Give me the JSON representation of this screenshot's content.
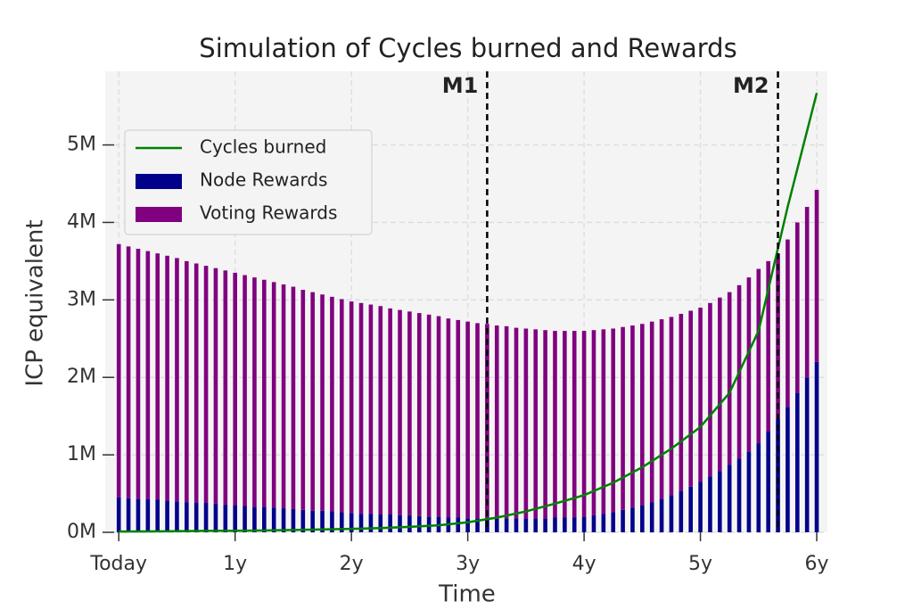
{
  "chart_data": {
    "type": "bar",
    "stacked": true,
    "title": "Simulation of Cycles burned and Rewards",
    "xlabel": "Time",
    "ylabel": "ICP equivalent",
    "xlim": [
      -1.4,
      73.1
    ],
    "xticks": [
      {
        "value": 0,
        "label": "Today"
      },
      {
        "value": 12,
        "label": "1y"
      },
      {
        "value": 24,
        "label": "2y"
      },
      {
        "value": 36,
        "label": "3y"
      },
      {
        "value": 48,
        "label": "4y"
      },
      {
        "value": 60,
        "label": "5y"
      },
      {
        "value": 72,
        "label": "6y"
      }
    ],
    "ylim": [
      0,
      5950000
    ],
    "yticks": [
      {
        "value": 0,
        "label": "0M"
      },
      {
        "value": 1000000,
        "label": "1M"
      },
      {
        "value": 2000000,
        "label": "2M"
      },
      {
        "value": 3000000,
        "label": "3M"
      },
      {
        "value": 4000000,
        "label": "4M"
      },
      {
        "value": 5000000,
        "label": "5M"
      }
    ],
    "grid": true,
    "legend": "upper left",
    "x": [
      0,
      1,
      2,
      3,
      4,
      5,
      6,
      7,
      8,
      9,
      10,
      11,
      12,
      13,
      14,
      15,
      16,
      17,
      18,
      19,
      20,
      21,
      22,
      23,
      24,
      25,
      26,
      27,
      28,
      29,
      30,
      31,
      32,
      33,
      34,
      35,
      36,
      37,
      38,
      39,
      40,
      41,
      42,
      43,
      44,
      45,
      46,
      47,
      48,
      49,
      50,
      51,
      52,
      53,
      54,
      55,
      56,
      57,
      58,
      59,
      60,
      61,
      62,
      63,
      64,
      65,
      66,
      67,
      68,
      69,
      70,
      71,
      72
    ],
    "series": [
      {
        "name": "Cycles burned",
        "color": "#008000",
        "type": "line",
        "x": [
          0,
          3,
          6,
          9,
          12,
          15,
          18,
          21,
          24,
          27,
          30,
          33,
          36,
          39,
          42,
          45,
          48,
          51,
          54,
          57,
          60,
          63,
          66,
          69,
          72
        ],
        "values": [
          10000,
          12000,
          15000,
          18000,
          20000,
          25000,
          30000,
          37000,
          45000,
          55000,
          70000,
          90000,
          130000,
          190000,
          270000,
          370000,
          480000,
          640000,
          840000,
          1080000,
          1360000,
          1800000,
          2600000,
          4200000,
          5670000
        ]
      },
      {
        "name": "Node Rewards",
        "color": "#00008b",
        "type": "bar",
        "values": [
          450000,
          440000,
          430000,
          430000,
          420000,
          410000,
          400000,
          390000,
          380000,
          380000,
          370000,
          360000,
          350000,
          340000,
          330000,
          330000,
          320000,
          310000,
          300000,
          290000,
          280000,
          280000,
          270000,
          260000,
          250000,
          240000,
          240000,
          230000,
          230000,
          220000,
          220000,
          210000,
          200000,
          200000,
          190000,
          190000,
          180000,
          180000,
          180000,
          180000,
          180000,
          180000,
          180000,
          180000,
          180000,
          190000,
          190000,
          190000,
          200000,
          220000,
          240000,
          260000,
          290000,
          320000,
          350000,
          390000,
          430000,
          480000,
          530000,
          590000,
          650000,
          720000,
          790000,
          870000,
          950000,
          1040000,
          1150000,
          1300000,
          1460000,
          1620000,
          1800000,
          2000000,
          2200000
        ]
      },
      {
        "name": "Voting Rewards",
        "color": "#800080",
        "type": "bar",
        "values": [
          3270000,
          3250000,
          3230000,
          3200000,
          3180000,
          3160000,
          3140000,
          3110000,
          3090000,
          3060000,
          3040000,
          3020000,
          3000000,
          2980000,
          2960000,
          2930000,
          2910000,
          2890000,
          2870000,
          2840000,
          2820000,
          2790000,
          2770000,
          2750000,
          2730000,
          2720000,
          2700000,
          2690000,
          2660000,
          2650000,
          2630000,
          2620000,
          2610000,
          2590000,
          2570000,
          2550000,
          2540000,
          2520000,
          2510000,
          2490000,
          2480000,
          2460000,
          2450000,
          2440000,
          2430000,
          2410000,
          2410000,
          2410000,
          2400000,
          2390000,
          2380000,
          2370000,
          2360000,
          2350000,
          2340000,
          2330000,
          2320000,
          2300000,
          2290000,
          2270000,
          2250000,
          2240000,
          2240000,
          2230000,
          2240000,
          2250000,
          2250000,
          2200000,
          2140000,
          2160000,
          2200000,
          2200000,
          2220000
        ]
      }
    ],
    "vlines": [
      {
        "x": 38,
        "label": "M1"
      },
      {
        "x": 68,
        "label": "M2"
      }
    ]
  }
}
